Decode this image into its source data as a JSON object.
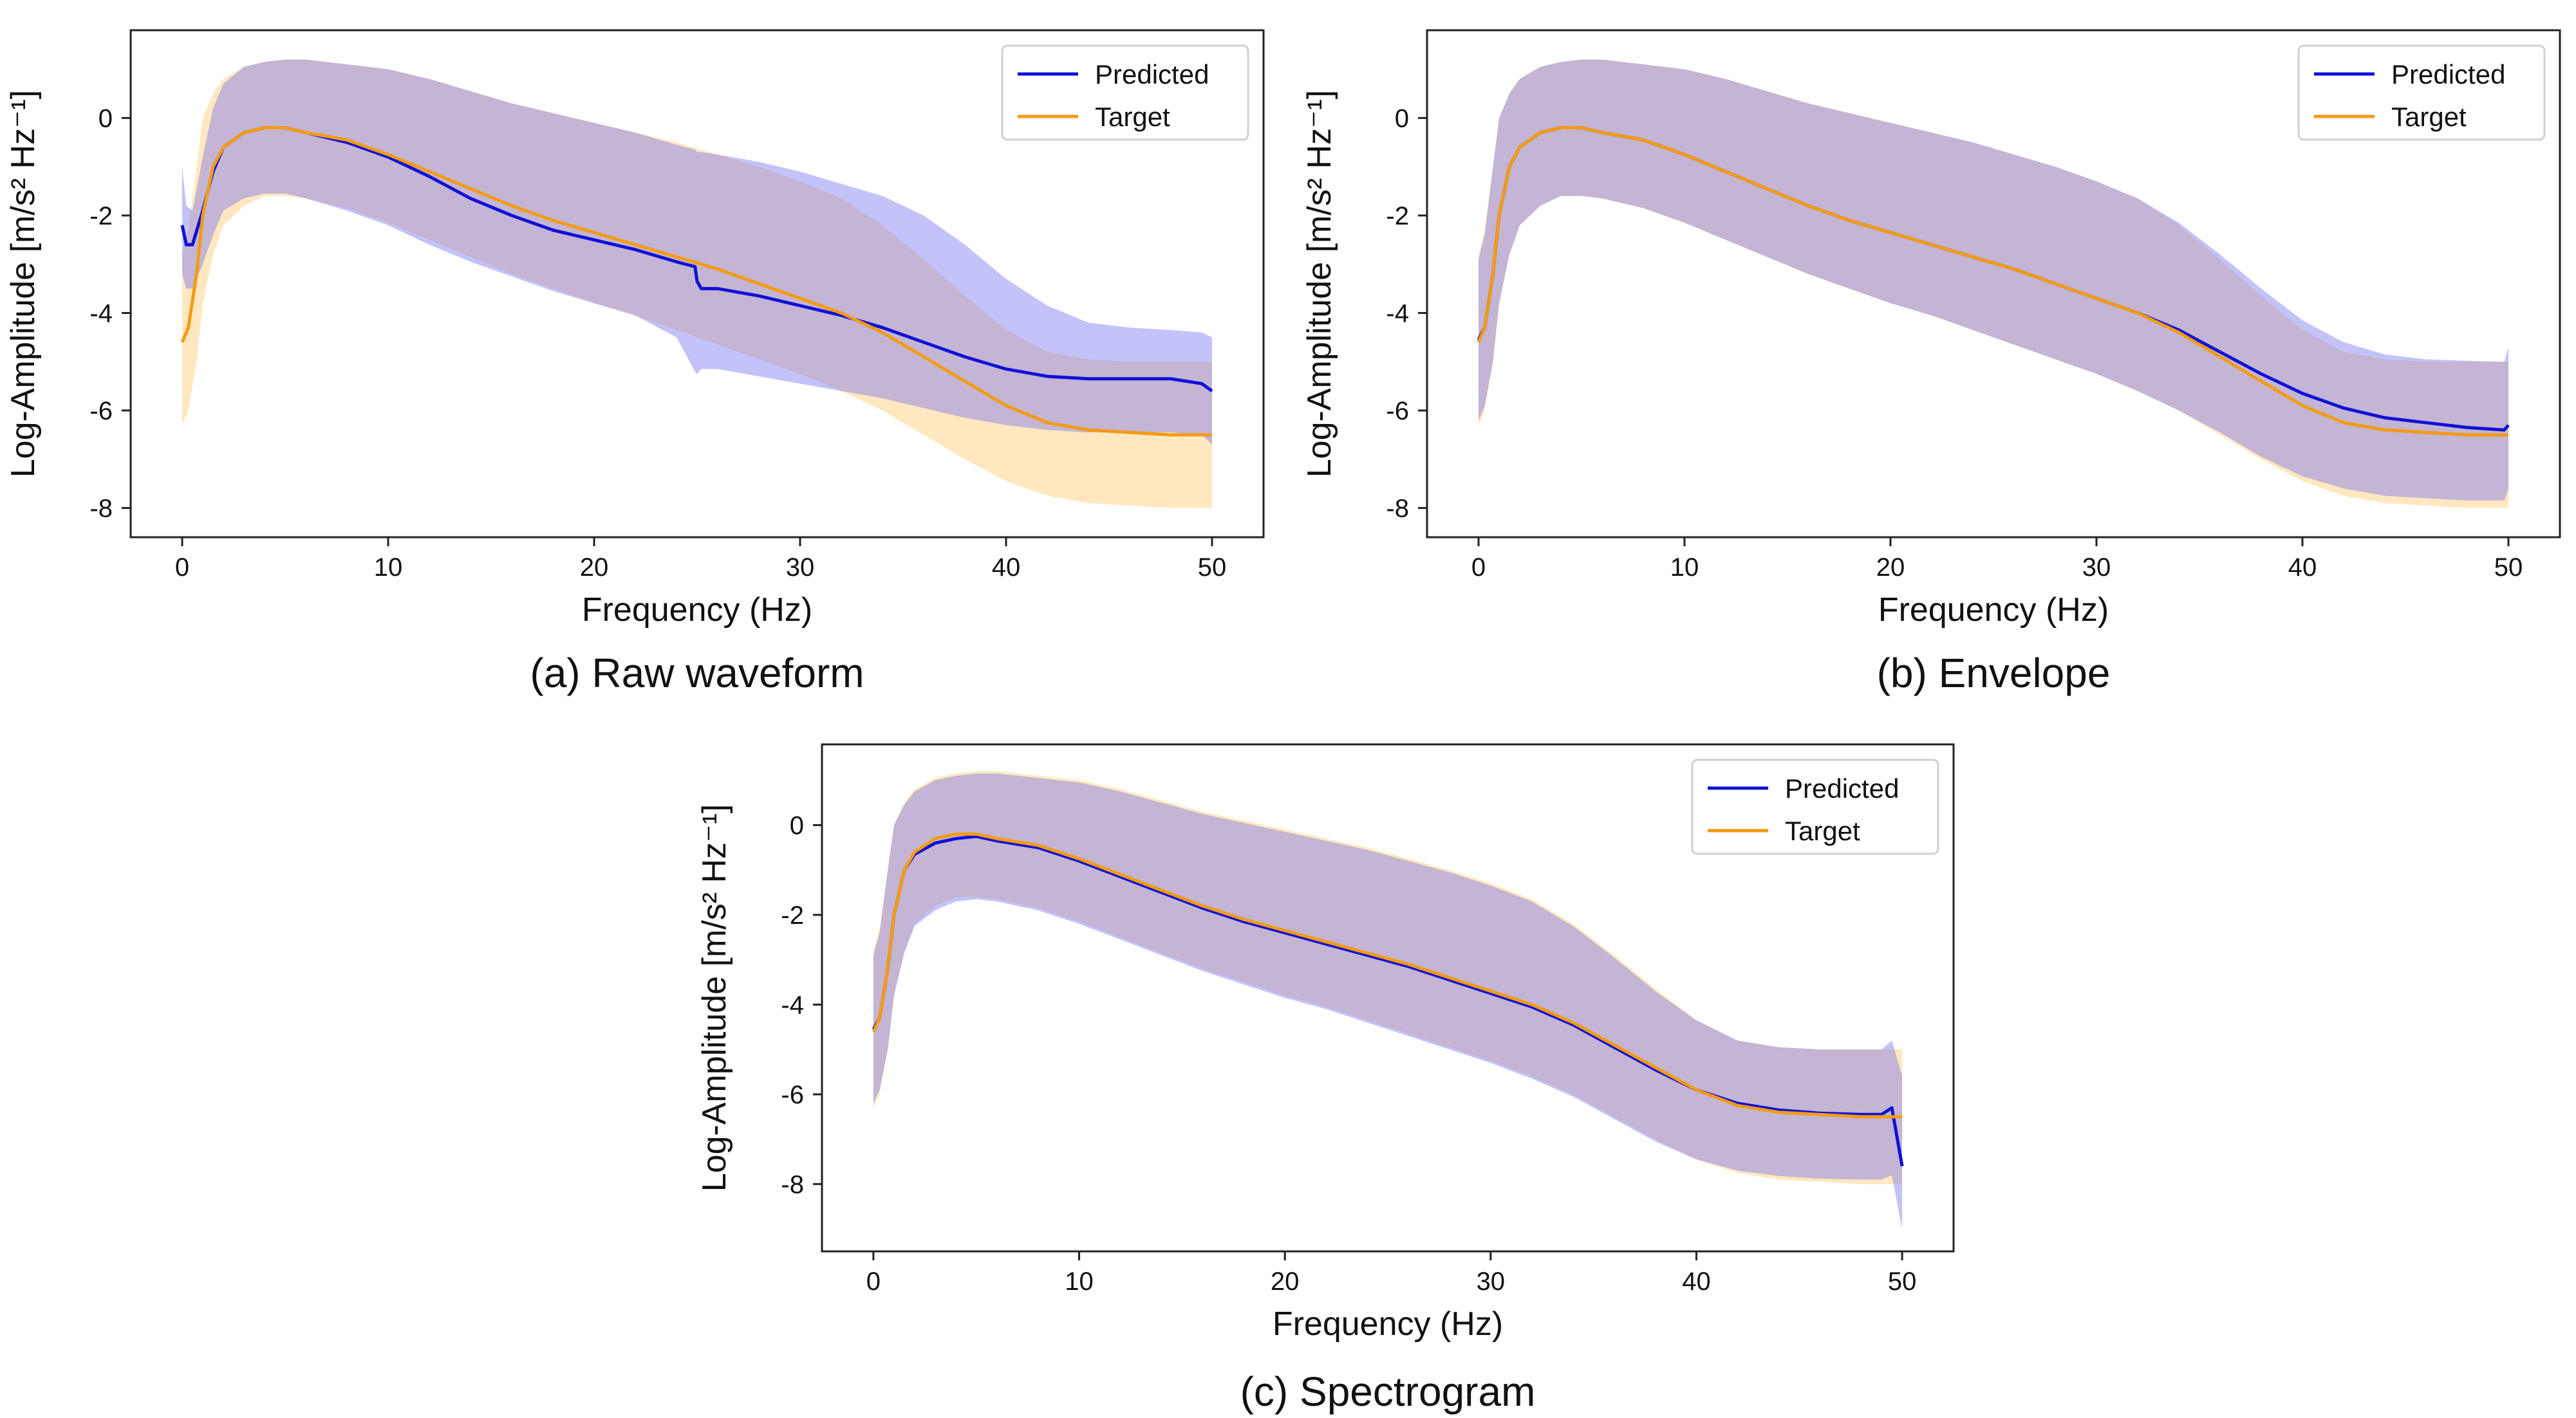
{
  "colors": {
    "predicted": "#1010d8",
    "target": "#f39b12",
    "predicted_band": "#6a6af2",
    "target_band": "#ffd58a",
    "overlap_band": "#b898a8"
  },
  "chart_data": [
    {
      "id": "a",
      "type": "line",
      "caption": "(a) Raw waveform",
      "xlabel": "Frequency (Hz)",
      "ylabel": "Log-Amplitude [m/s² Hz⁻¹]",
      "xlim": [
        -2.5,
        52.5
      ],
      "ylim": [
        -8.6,
        1.8
      ],
      "xticks": [
        0,
        10,
        20,
        30,
        40,
        50
      ],
      "yticks": [
        0,
        -2,
        -4,
        -6,
        -8
      ],
      "grid": false,
      "legend_position": "top-right",
      "series": [
        {
          "name": "Predicted",
          "x": [
            0,
            0.2,
            0.5,
            1,
            1.5,
            2,
            3,
            4,
            5,
            6,
            8,
            10,
            12,
            14,
            16,
            18,
            20,
            22,
            24,
            24.9,
            25,
            25.2,
            26,
            28,
            30,
            32,
            34,
            36,
            38,
            40,
            42,
            44,
            46,
            48,
            49.5,
            50
          ],
          "y": [
            -2.2,
            -2.6,
            -2.6,
            -1.9,
            -1.1,
            -0.6,
            -0.3,
            -0.2,
            -0.2,
            -0.3,
            -0.5,
            -0.8,
            -1.2,
            -1.65,
            -2.0,
            -2.3,
            -2.5,
            -2.7,
            -2.95,
            -3.05,
            -3.35,
            -3.5,
            -3.5,
            -3.65,
            -3.85,
            -4.05,
            -4.3,
            -4.6,
            -4.9,
            -5.15,
            -5.3,
            -5.35,
            -5.35,
            -5.35,
            -5.45,
            -5.6
          ],
          "upper": [
            -1.0,
            -1.8,
            -1.9,
            -0.8,
            0.2,
            0.7,
            1.05,
            1.15,
            1.2,
            1.2,
            1.1,
            1.0,
            0.8,
            0.55,
            0.3,
            0.1,
            -0.1,
            -0.3,
            -0.55,
            -0.65,
            -0.7,
            -0.7,
            -0.75,
            -0.9,
            -1.1,
            -1.35,
            -1.6,
            -2.0,
            -2.6,
            -3.3,
            -3.85,
            -4.2,
            -4.3,
            -4.35,
            -4.4,
            -4.5
          ],
          "lower": [
            -3.2,
            -3.5,
            -3.5,
            -3.0,
            -2.4,
            -1.9,
            -1.65,
            -1.55,
            -1.55,
            -1.65,
            -1.9,
            -2.2,
            -2.6,
            -2.95,
            -3.25,
            -3.55,
            -3.8,
            -4.05,
            -4.5,
            -5.2,
            -5.25,
            -5.15,
            -5.15,
            -5.3,
            -5.45,
            -5.6,
            -5.75,
            -5.95,
            -6.15,
            -6.3,
            -6.4,
            -6.45,
            -6.45,
            -6.45,
            -6.5,
            -6.7
          ]
        },
        {
          "name": "Target",
          "x": [
            0,
            0.3,
            0.7,
            1,
            1.5,
            2,
            3,
            4,
            5,
            6,
            8,
            10,
            12,
            14,
            16,
            18,
            20,
            22,
            24,
            26,
            28,
            30,
            32,
            34,
            36,
            38,
            40,
            42,
            44,
            46,
            48,
            50
          ],
          "y": [
            -4.6,
            -4.3,
            -3.2,
            -2.0,
            -1.0,
            -0.6,
            -0.3,
            -0.2,
            -0.2,
            -0.3,
            -0.45,
            -0.75,
            -1.1,
            -1.45,
            -1.8,
            -2.1,
            -2.35,
            -2.6,
            -2.85,
            -3.1,
            -3.4,
            -3.7,
            -4.0,
            -4.4,
            -4.9,
            -5.4,
            -5.9,
            -6.25,
            -6.4,
            -6.45,
            -6.5,
            -6.5
          ],
          "upper": [
            -2.8,
            -2.3,
            -1.0,
            0.0,
            0.5,
            0.8,
            1.05,
            1.15,
            1.2,
            1.2,
            1.1,
            1.0,
            0.8,
            0.55,
            0.3,
            0.1,
            -0.1,
            -0.3,
            -0.5,
            -0.75,
            -1.0,
            -1.3,
            -1.65,
            -2.2,
            -2.9,
            -3.65,
            -4.35,
            -4.8,
            -4.95,
            -5.0,
            -5.0,
            -5.0
          ],
          "lower": [
            -6.3,
            -6.0,
            -5.0,
            -3.8,
            -2.8,
            -2.2,
            -1.8,
            -1.6,
            -1.6,
            -1.65,
            -1.85,
            -2.15,
            -2.5,
            -2.85,
            -3.2,
            -3.5,
            -3.8,
            -4.05,
            -4.35,
            -4.65,
            -4.95,
            -5.25,
            -5.6,
            -6.0,
            -6.5,
            -7.0,
            -7.45,
            -7.75,
            -7.9,
            -7.95,
            -8.0,
            -8.0
          ]
        }
      ]
    },
    {
      "id": "b",
      "type": "line",
      "caption": "(b) Envelope",
      "xlabel": "Frequency (Hz)",
      "ylabel": "Log-Amplitude [m/s² Hz⁻¹]",
      "xlim": [
        -2.5,
        52.5
      ],
      "ylim": [
        -8.6,
        1.8
      ],
      "xticks": [
        0,
        10,
        20,
        30,
        40,
        50
      ],
      "yticks": [
        0,
        -2,
        -4,
        -6,
        -8
      ],
      "grid": false,
      "legend_position": "top-right",
      "series": [
        {
          "name": "Predicted",
          "x": [
            0,
            0.3,
            0.7,
            1,
            1.5,
            2,
            3,
            4,
            5,
            6,
            8,
            10,
            12,
            14,
            16,
            18,
            20,
            22,
            24,
            26,
            28,
            30,
            32,
            34,
            36,
            38,
            40,
            42,
            44,
            46,
            48,
            49.8,
            50
          ],
          "y": [
            -4.55,
            -4.3,
            -3.2,
            -2.0,
            -1.0,
            -0.6,
            -0.3,
            -0.2,
            -0.2,
            -0.3,
            -0.45,
            -0.75,
            -1.1,
            -1.45,
            -1.8,
            -2.1,
            -2.35,
            -2.6,
            -2.85,
            -3.1,
            -3.4,
            -3.7,
            -4.0,
            -4.35,
            -4.8,
            -5.25,
            -5.65,
            -5.95,
            -6.15,
            -6.25,
            -6.35,
            -6.4,
            -6.3
          ],
          "upper": [
            -2.9,
            -2.4,
            -1.0,
            0.0,
            0.5,
            0.8,
            1.05,
            1.15,
            1.2,
            1.2,
            1.1,
            1.0,
            0.8,
            0.55,
            0.3,
            0.1,
            -0.1,
            -0.3,
            -0.5,
            -0.75,
            -1.0,
            -1.3,
            -1.65,
            -2.15,
            -2.8,
            -3.5,
            -4.15,
            -4.6,
            -4.85,
            -4.95,
            -4.98,
            -5.0,
            -4.7
          ],
          "lower": [
            -6.2,
            -5.9,
            -5.0,
            -3.8,
            -2.8,
            -2.2,
            -1.8,
            -1.6,
            -1.6,
            -1.65,
            -1.85,
            -2.15,
            -2.5,
            -2.85,
            -3.2,
            -3.5,
            -3.8,
            -4.05,
            -4.35,
            -4.65,
            -4.95,
            -5.25,
            -5.6,
            -6.0,
            -6.45,
            -6.95,
            -7.35,
            -7.6,
            -7.75,
            -7.8,
            -7.85,
            -7.85,
            -7.6
          ]
        },
        {
          "name": "Target",
          "x": [
            0,
            0.3,
            0.7,
            1,
            1.5,
            2,
            3,
            4,
            5,
            6,
            8,
            10,
            12,
            14,
            16,
            18,
            20,
            22,
            24,
            26,
            28,
            30,
            32,
            34,
            36,
            38,
            40,
            42,
            44,
            46,
            48,
            50
          ],
          "y": [
            -4.6,
            -4.3,
            -3.2,
            -2.0,
            -1.0,
            -0.6,
            -0.3,
            -0.2,
            -0.2,
            -0.3,
            -0.45,
            -0.75,
            -1.1,
            -1.45,
            -1.8,
            -2.1,
            -2.35,
            -2.6,
            -2.85,
            -3.1,
            -3.4,
            -3.7,
            -4.0,
            -4.4,
            -4.9,
            -5.4,
            -5.9,
            -6.25,
            -6.4,
            -6.45,
            -6.5,
            -6.5
          ],
          "upper": [
            -2.8,
            -2.3,
            -1.0,
            0.0,
            0.5,
            0.8,
            1.05,
            1.15,
            1.2,
            1.2,
            1.1,
            1.0,
            0.8,
            0.55,
            0.3,
            0.1,
            -0.1,
            -0.3,
            -0.5,
            -0.75,
            -1.0,
            -1.3,
            -1.65,
            -2.2,
            -2.9,
            -3.65,
            -4.35,
            -4.8,
            -4.95,
            -5.0,
            -5.0,
            -5.0
          ],
          "lower": [
            -6.3,
            -6.0,
            -5.0,
            -3.8,
            -2.8,
            -2.2,
            -1.8,
            -1.6,
            -1.6,
            -1.65,
            -1.85,
            -2.15,
            -2.5,
            -2.85,
            -3.2,
            -3.5,
            -3.8,
            -4.05,
            -4.35,
            -4.65,
            -4.95,
            -5.25,
            -5.6,
            -6.0,
            -6.5,
            -7.0,
            -7.45,
            -7.75,
            -7.9,
            -7.95,
            -8.0,
            -8.0
          ]
        }
      ]
    },
    {
      "id": "c",
      "type": "line",
      "caption": "(c) Spectrogram",
      "xlabel": "Frequency (Hz)",
      "ylabel": "Log-Amplitude [m/s² Hz⁻¹]",
      "xlim": [
        -2.5,
        52.5
      ],
      "ylim": [
        -9.5,
        1.8
      ],
      "xticks": [
        0,
        10,
        20,
        30,
        40,
        50
      ],
      "yticks": [
        0,
        -2,
        -4,
        -6,
        -8
      ],
      "grid": false,
      "legend_position": "top-right",
      "series": [
        {
          "name": "Predicted",
          "x": [
            0,
            0.3,
            0.7,
            1,
            1.5,
            2,
            3,
            4,
            5,
            6,
            8,
            10,
            12,
            14,
            16,
            18,
            20,
            22,
            24,
            26,
            28,
            30,
            32,
            34,
            36,
            38,
            40,
            42,
            44,
            46,
            48,
            49,
            49.5,
            50
          ],
          "y": [
            -4.55,
            -4.3,
            -3.2,
            -2.0,
            -1.0,
            -0.65,
            -0.4,
            -0.3,
            -0.25,
            -0.35,
            -0.5,
            -0.8,
            -1.15,
            -1.5,
            -1.85,
            -2.15,
            -2.4,
            -2.65,
            -2.9,
            -3.15,
            -3.45,
            -3.75,
            -4.05,
            -4.45,
            -4.95,
            -5.45,
            -5.9,
            -6.2,
            -6.35,
            -6.42,
            -6.45,
            -6.45,
            -6.3,
            -7.6
          ],
          "upper": [
            -2.9,
            -2.4,
            -1.0,
            0.0,
            0.45,
            0.75,
            1.0,
            1.1,
            1.15,
            1.15,
            1.05,
            0.95,
            0.75,
            0.5,
            0.25,
            0.05,
            -0.15,
            -0.35,
            -0.55,
            -0.8,
            -1.05,
            -1.35,
            -1.7,
            -2.25,
            -2.95,
            -3.7,
            -4.35,
            -4.8,
            -4.95,
            -5.0,
            -5.0,
            -5.0,
            -4.8,
            -5.6
          ],
          "lower": [
            -6.2,
            -5.9,
            -5.0,
            -3.8,
            -2.85,
            -2.25,
            -1.9,
            -1.7,
            -1.65,
            -1.7,
            -1.9,
            -2.2,
            -2.55,
            -2.9,
            -3.25,
            -3.55,
            -3.85,
            -4.1,
            -4.4,
            -4.7,
            -5.0,
            -5.3,
            -5.65,
            -6.05,
            -6.55,
            -7.05,
            -7.45,
            -7.7,
            -7.82,
            -7.88,
            -7.9,
            -7.9,
            -7.8,
            -9.0
          ]
        },
        {
          "name": "Target",
          "x": [
            0,
            0.3,
            0.7,
            1,
            1.5,
            2,
            3,
            4,
            5,
            6,
            8,
            10,
            12,
            14,
            16,
            18,
            20,
            22,
            24,
            26,
            28,
            30,
            32,
            34,
            36,
            38,
            40,
            42,
            44,
            46,
            48,
            50
          ],
          "y": [
            -4.6,
            -4.3,
            -3.2,
            -2.0,
            -1.0,
            -0.6,
            -0.3,
            -0.2,
            -0.2,
            -0.3,
            -0.45,
            -0.75,
            -1.1,
            -1.45,
            -1.8,
            -2.1,
            -2.35,
            -2.6,
            -2.85,
            -3.1,
            -3.4,
            -3.7,
            -4.0,
            -4.4,
            -4.9,
            -5.4,
            -5.9,
            -6.25,
            -6.4,
            -6.45,
            -6.5,
            -6.5
          ],
          "upper": [
            -2.8,
            -2.3,
            -1.0,
            0.0,
            0.5,
            0.8,
            1.05,
            1.15,
            1.2,
            1.2,
            1.1,
            1.0,
            0.8,
            0.55,
            0.3,
            0.1,
            -0.1,
            -0.3,
            -0.5,
            -0.75,
            -1.0,
            -1.3,
            -1.65,
            -2.2,
            -2.9,
            -3.65,
            -4.35,
            -4.8,
            -4.95,
            -5.0,
            -5.0,
            -5.0
          ],
          "lower": [
            -6.3,
            -6.0,
            -5.0,
            -3.8,
            -2.8,
            -2.2,
            -1.8,
            -1.6,
            -1.6,
            -1.65,
            -1.85,
            -2.15,
            -2.5,
            -2.85,
            -3.2,
            -3.5,
            -3.8,
            -4.05,
            -4.35,
            -4.65,
            -4.95,
            -5.25,
            -5.6,
            -6.0,
            -6.5,
            -7.0,
            -7.45,
            -7.75,
            -7.9,
            -7.95,
            -8.0,
            -8.0
          ]
        }
      ]
    }
  ]
}
